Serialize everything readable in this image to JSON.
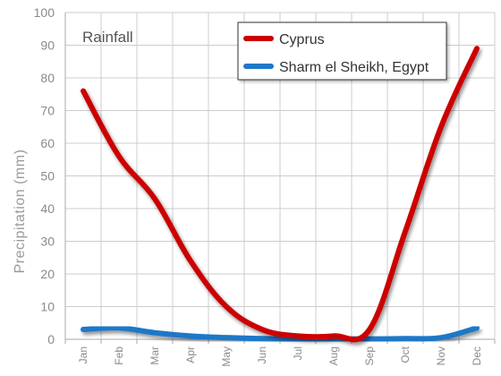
{
  "chart_data": {
    "type": "line",
    "title": "Rainfall",
    "ylabel": "Precipitation (mm)",
    "xlabel": "",
    "ylim": [
      0,
      100
    ],
    "yticks": [
      0,
      10,
      20,
      30,
      40,
      50,
      60,
      70,
      80,
      90,
      100
    ],
    "grid": true,
    "legend_position": "top-right",
    "categories": [
      "Jan",
      "Feb",
      "Mar",
      "Apr",
      "May",
      "Jun",
      "Jul",
      "Aug",
      "Sep",
      "Oct",
      "Nov",
      "Dec"
    ],
    "series": [
      {
        "name": "Cyprus",
        "color": "#cc0000",
        "values": [
          76,
          56,
          43,
          24,
          10,
          3,
          1,
          1,
          3,
          33,
          65,
          89
        ]
      },
      {
        "name": "Sharm el Sheikh, Egypt",
        "color": "#1f78c8",
        "values": [
          3,
          3.5,
          2,
          1,
          0.5,
          0.2,
          0.1,
          0.1,
          0.1,
          0.2,
          0.5,
          3.5
        ]
      }
    ]
  },
  "colors": {
    "grid": "#cccccc",
    "axis": "#aaaaaa",
    "shadow": "#777777"
  }
}
